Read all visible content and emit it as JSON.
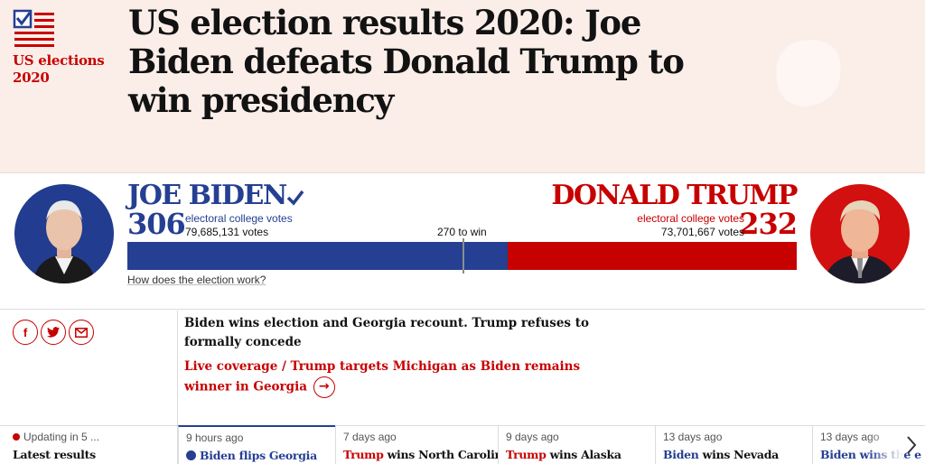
{
  "header": {
    "kicker_line1": "US elections",
    "kicker_line2": "2020",
    "headline": "US election results 2020: Joe Biden defeats Donald Trump to win presidency",
    "logo_icon": "checkbox-flag-icon"
  },
  "results": {
    "total_electoral": 538,
    "threshold": 270,
    "threshold_label": "270 to win",
    "how_link": "How does the election work?",
    "biden": {
      "name": "JOE BIDEN",
      "electoral_votes": "306",
      "electoral_label": "electoral college votes",
      "popular_votes": "79,685,131 votes",
      "color": "#253f92",
      "winner": true
    },
    "trump": {
      "name": "DONALD TRUMP",
      "electoral_votes": "232",
      "electoral_label": "electoral college votes",
      "popular_votes": "73,701,667 votes",
      "color": "#c70000"
    }
  },
  "share": {
    "facebook": "f",
    "twitter_icon": "twitter-bird-icon",
    "email_icon": "envelope-icon"
  },
  "news": {
    "summary": "Biden wins election and Georgia recount. Trump refuses to formally concede",
    "live": "Live coverage / Trump targets Michigan as Biden remains winner in Georgia",
    "arrow_icon": "arrow-right-icon"
  },
  "ticker": {
    "status": "Updating in 5 ...",
    "label": "Latest results",
    "items": [
      {
        "time": "9 hours ago",
        "party": "Biden",
        "rest": " flips Georgia"
      },
      {
        "time": "7 days ago",
        "party": "Trump",
        "rest": " wins North Carolina"
      },
      {
        "time": "9 days ago",
        "party": "Trump",
        "rest": " wins Alaska"
      },
      {
        "time": "13 days ago",
        "party": "Biden",
        "rest": " wins Nevada"
      },
      {
        "time": "13 days ago",
        "party": "Biden",
        "rest": " wins the e"
      }
    ]
  }
}
